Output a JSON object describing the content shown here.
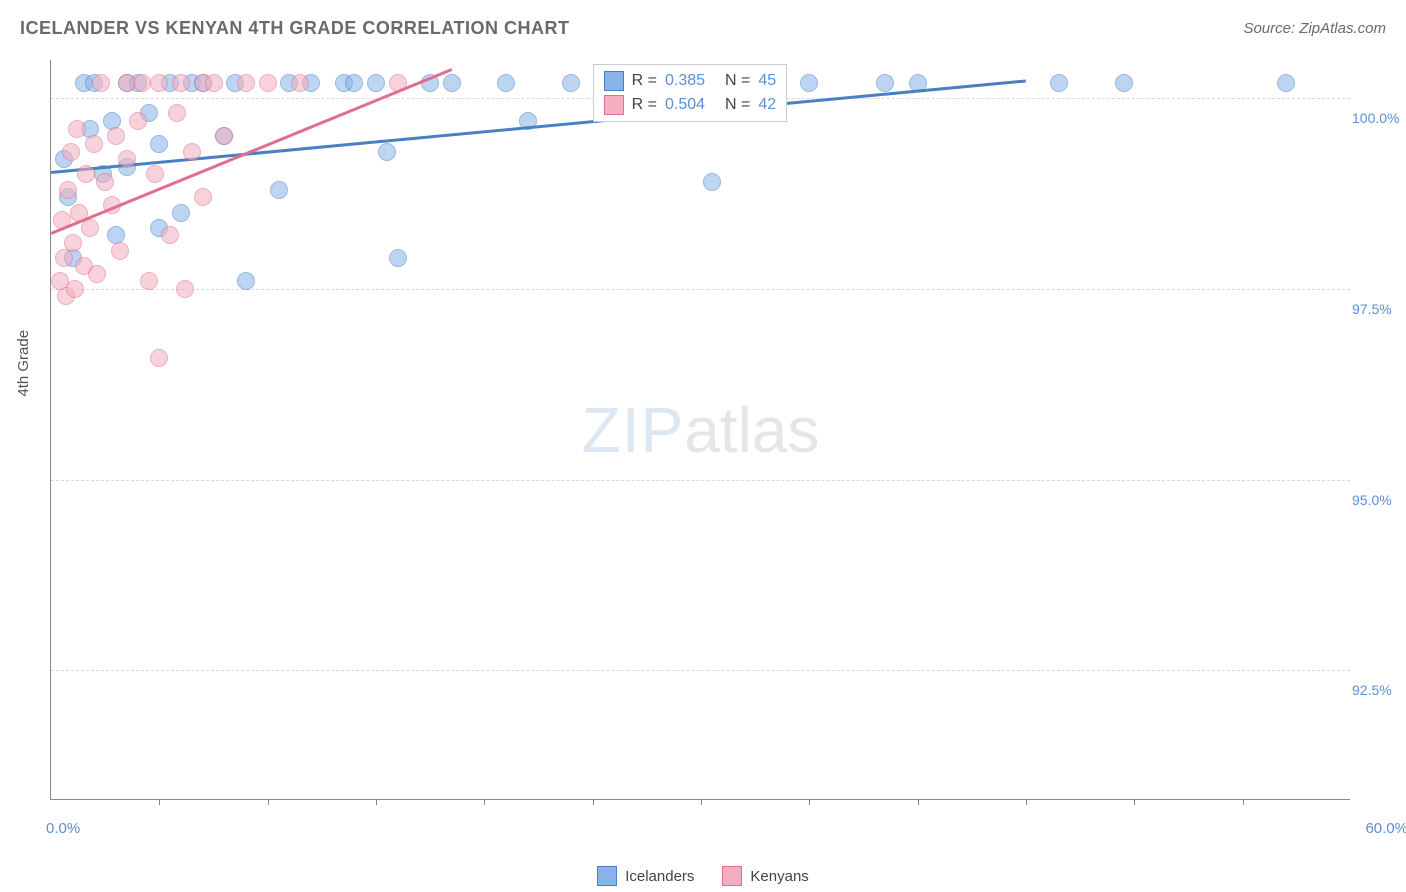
{
  "header": {
    "title": "ICELANDER VS KENYAN 4TH GRADE CORRELATION CHART",
    "source": "Source: ZipAtlas.com"
  },
  "watermark": {
    "part1": "ZIP",
    "part2": "atlas"
  },
  "chart": {
    "type": "scatter",
    "background_color": "#ffffff",
    "grid_color": "#d8d8d8",
    "axis_color": "#888888",
    "label_color": "#5b8fd6",
    "ylabel": "4th Grade",
    "ylabel_color": "#555555",
    "ylabel_fontsize": 15,
    "xlim": [
      0,
      60
    ],
    "ylim": [
      90.8,
      100.5
    ],
    "ytick_values": [
      92.5,
      95.0,
      97.5,
      100.0
    ],
    "ytick_labels": [
      "92.5%",
      "95.0%",
      "97.5%",
      "100.0%"
    ],
    "xtick_values": [
      5,
      10,
      15,
      20,
      25,
      30,
      35,
      40,
      45,
      50,
      55
    ],
    "xaxis_min_label": "0.0%",
    "xaxis_max_label": "60.0%",
    "marker_radius": 9,
    "marker_opacity": 0.55,
    "marker_border_width": 1.2,
    "series": [
      {
        "name": "Icelanders",
        "fill_color": "#87b3e8",
        "border_color": "#4a7fc2",
        "points": [
          [
            0.6,
            99.2
          ],
          [
            0.8,
            98.7
          ],
          [
            1.0,
            97.9
          ],
          [
            1.5,
            100.2
          ],
          [
            1.8,
            99.6
          ],
          [
            2.0,
            100.2
          ],
          [
            2.4,
            99.0
          ],
          [
            2.8,
            99.7
          ],
          [
            3.0,
            98.2
          ],
          [
            3.5,
            100.2
          ],
          [
            3.5,
            99.1
          ],
          [
            4.0,
            100.2
          ],
          [
            4.5,
            99.8
          ],
          [
            5.0,
            99.4
          ],
          [
            5.0,
            98.3
          ],
          [
            5.5,
            100.2
          ],
          [
            6.0,
            98.5
          ],
          [
            6.5,
            100.2
          ],
          [
            7.0,
            100.2
          ],
          [
            8.0,
            99.5
          ],
          [
            8.5,
            100.2
          ],
          [
            9.0,
            97.6
          ],
          [
            10.5,
            98.8
          ],
          [
            11.0,
            100.2
          ],
          [
            12.0,
            100.2
          ],
          [
            13.5,
            100.2
          ],
          [
            14.0,
            100.2
          ],
          [
            15.0,
            100.2
          ],
          [
            15.5,
            99.3
          ],
          [
            16.0,
            97.9
          ],
          [
            17.5,
            100.2
          ],
          [
            18.5,
            100.2
          ],
          [
            21.0,
            100.2
          ],
          [
            22.0,
            99.7
          ],
          [
            24.0,
            100.2
          ],
          [
            26.0,
            100.2
          ],
          [
            27.0,
            100.2
          ],
          [
            29.0,
            100.2
          ],
          [
            30.5,
            98.9
          ],
          [
            35.0,
            100.2
          ],
          [
            38.5,
            100.2
          ],
          [
            40.0,
            100.2
          ],
          [
            46.5,
            100.2
          ],
          [
            49.5,
            100.2
          ],
          [
            57.0,
            100.2
          ]
        ],
        "trend": {
          "x1": 0,
          "y1": 99.05,
          "x2": 45,
          "y2": 100.25,
          "width": 2.5
        }
      },
      {
        "name": "Kenyans",
        "fill_color": "#f4aebf",
        "border_color": "#e06f8f",
        "points": [
          [
            0.4,
            97.6
          ],
          [
            0.5,
            98.4
          ],
          [
            0.6,
            97.9
          ],
          [
            0.7,
            97.4
          ],
          [
            0.8,
            98.8
          ],
          [
            0.9,
            99.3
          ],
          [
            1.0,
            98.1
          ],
          [
            1.1,
            97.5
          ],
          [
            1.2,
            99.6
          ],
          [
            1.3,
            98.5
          ],
          [
            1.5,
            97.8
          ],
          [
            1.6,
            99.0
          ],
          [
            1.8,
            98.3
          ],
          [
            2.0,
            99.4
          ],
          [
            2.1,
            97.7
          ],
          [
            2.3,
            100.2
          ],
          [
            2.5,
            98.9
          ],
          [
            2.8,
            98.6
          ],
          [
            3.0,
            99.5
          ],
          [
            3.2,
            98.0
          ],
          [
            3.5,
            100.2
          ],
          [
            3.5,
            99.2
          ],
          [
            4.0,
            99.7
          ],
          [
            4.2,
            100.2
          ],
          [
            4.5,
            97.6
          ],
          [
            4.8,
            99.0
          ],
          [
            5.0,
            100.2
          ],
          [
            5.0,
            96.6
          ],
          [
            5.5,
            98.2
          ],
          [
            5.8,
            99.8
          ],
          [
            6.0,
            100.2
          ],
          [
            6.2,
            97.5
          ],
          [
            6.5,
            99.3
          ],
          [
            7.0,
            100.2
          ],
          [
            7.0,
            98.7
          ],
          [
            7.5,
            100.2
          ],
          [
            8.0,
            99.5
          ],
          [
            9.0,
            100.2
          ],
          [
            10.0,
            100.2
          ],
          [
            11.5,
            100.2
          ],
          [
            16.0,
            100.2
          ],
          [
            30.0,
            100.2
          ]
        ],
        "trend": {
          "x1": 0,
          "y1": 98.25,
          "x2": 18.5,
          "y2": 100.4,
          "width": 2.5
        }
      }
    ]
  },
  "legend_top": {
    "rows": [
      {
        "fill": "#87b3e8",
        "border": "#4a7fc2",
        "r_label": "R =",
        "r_value": "0.385",
        "n_label": "N =",
        "n_value": "45"
      },
      {
        "fill": "#f4aebf",
        "border": "#e06f8f",
        "r_label": "R =",
        "r_value": "0.504",
        "n_label": "N =",
        "n_value": "42"
      }
    ]
  },
  "legend_bottom": {
    "items": [
      {
        "fill": "#87b3e8",
        "border": "#4a7fc2",
        "label": "Icelanders"
      },
      {
        "fill": "#f4aebf",
        "border": "#e06f8f",
        "label": "Kenyans"
      }
    ]
  }
}
